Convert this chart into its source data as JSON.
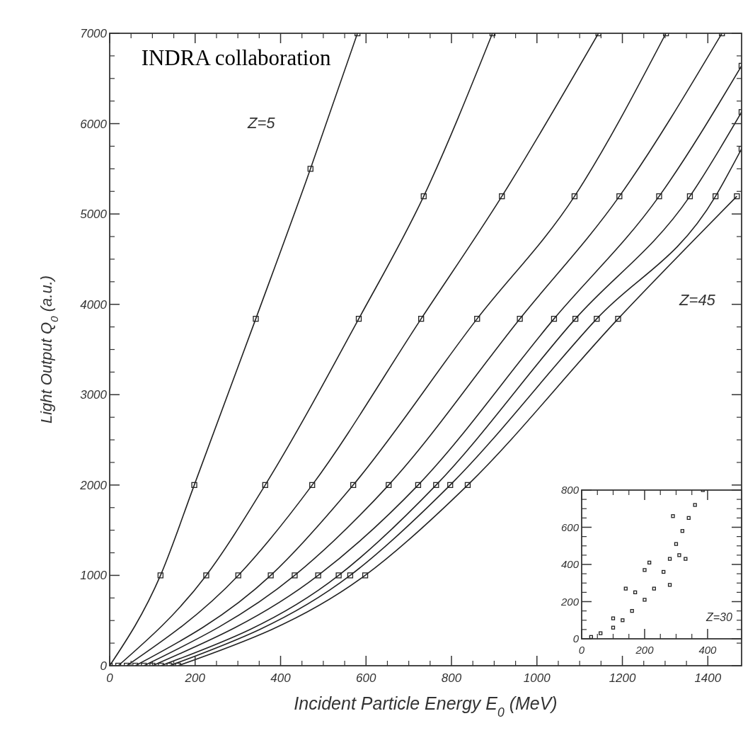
{
  "chart_data": [
    {
      "type": "line",
      "xlabel": "Incident Particle Energy E$_{0}$ (MeV)",
      "ylabel": "Light Output Q$_{0}$ (a.u.)",
      "xlim": [
        0,
        1479
      ],
      "ylim": [
        0,
        7000
      ],
      "xticks": [
        0,
        200,
        400,
        600,
        800,
        1000,
        1200,
        1400
      ],
      "yticks": [
        0,
        1000,
        2000,
        3000,
        4000,
        5000,
        6000,
        7000
      ],
      "marker": "square",
      "line_style": "solid",
      "annotations": [
        "INDRA collaboration",
        "Z=5",
        "Z=45"
      ],
      "series": [
        {
          "color": "#222222",
          "x": [
            0,
            119,
            198,
            342,
            470,
            580
          ],
          "values": [
            0,
            1000,
            2000,
            3840,
            5500,
            7000
          ]
        },
        {
          "color": "#222222",
          "x": [
            20,
            226,
            364,
            583,
            735,
            896
          ],
          "values": [
            0,
            1000,
            2000,
            3840,
            5196,
            7000
          ]
        },
        {
          "color": "#222222",
          "x": [
            40,
            301,
            474,
            729,
            918,
            1144
          ],
          "values": [
            0,
            1000,
            2000,
            3840,
            5196,
            7000
          ]
        },
        {
          "color": "#222222",
          "x": [
            60,
            377,
            570,
            860,
            1088,
            1302
          ],
          "values": [
            0,
            1000,
            2000,
            3840,
            5196,
            7000
          ]
        },
        {
          "color": "#222222",
          "x": [
            80,
            433,
            653,
            960,
            1193,
            1433
          ],
          "values": [
            0,
            1000,
            2000,
            3840,
            5196,
            7000
          ]
        },
        {
          "color": "#222222",
          "x": [
            100,
            488,
            722,
            1040,
            1286,
            1479
          ],
          "values": [
            0,
            1000,
            2000,
            3840,
            5196,
            6640
          ]
        },
        {
          "color": "#222222",
          "x": [
            120,
            536,
            764,
            1090,
            1358,
            1479
          ],
          "values": [
            0,
            1000,
            2000,
            3840,
            5196,
            6128
          ]
        },
        {
          "color": "#222222",
          "x": [
            140,
            563,
            797,
            1140,
            1418,
            1479
          ],
          "values": [
            0,
            1000,
            2000,
            3840,
            5196,
            5721
          ]
        },
        {
          "color": "#222222",
          "x": [
            160,
            598,
            838,
            1190,
            1468
          ],
          "values": [
            0,
            1000,
            2000,
            3840,
            5196
          ]
        }
      ]
    },
    {
      "type": "scatter",
      "xlim": [
        0,
        508
      ],
      "ylim": [
        0,
        800
      ],
      "xticks": [
        0,
        200,
        400
      ],
      "yticks": [
        0,
        200,
        400,
        600,
        800
      ],
      "marker": "square",
      "annotations": [
        "Z=30"
      ],
      "series": [
        {
          "color": "#222222",
          "x": [
            30,
            60,
            100,
            130,
            160,
            200,
            230,
            260,
            280,
            300,
            320,
            340,
            360,
            385,
            290,
            215,
            200,
            140,
            170,
            310,
            330,
            280,
            100
          ],
          "values": [
            10,
            30,
            60,
            100,
            150,
            210,
            270,
            360,
            430,
            510,
            580,
            650,
            720,
            800,
            660,
            410,
            370,
            270,
            250,
            450,
            430,
            290,
            110
          ]
        }
      ]
    }
  ]
}
